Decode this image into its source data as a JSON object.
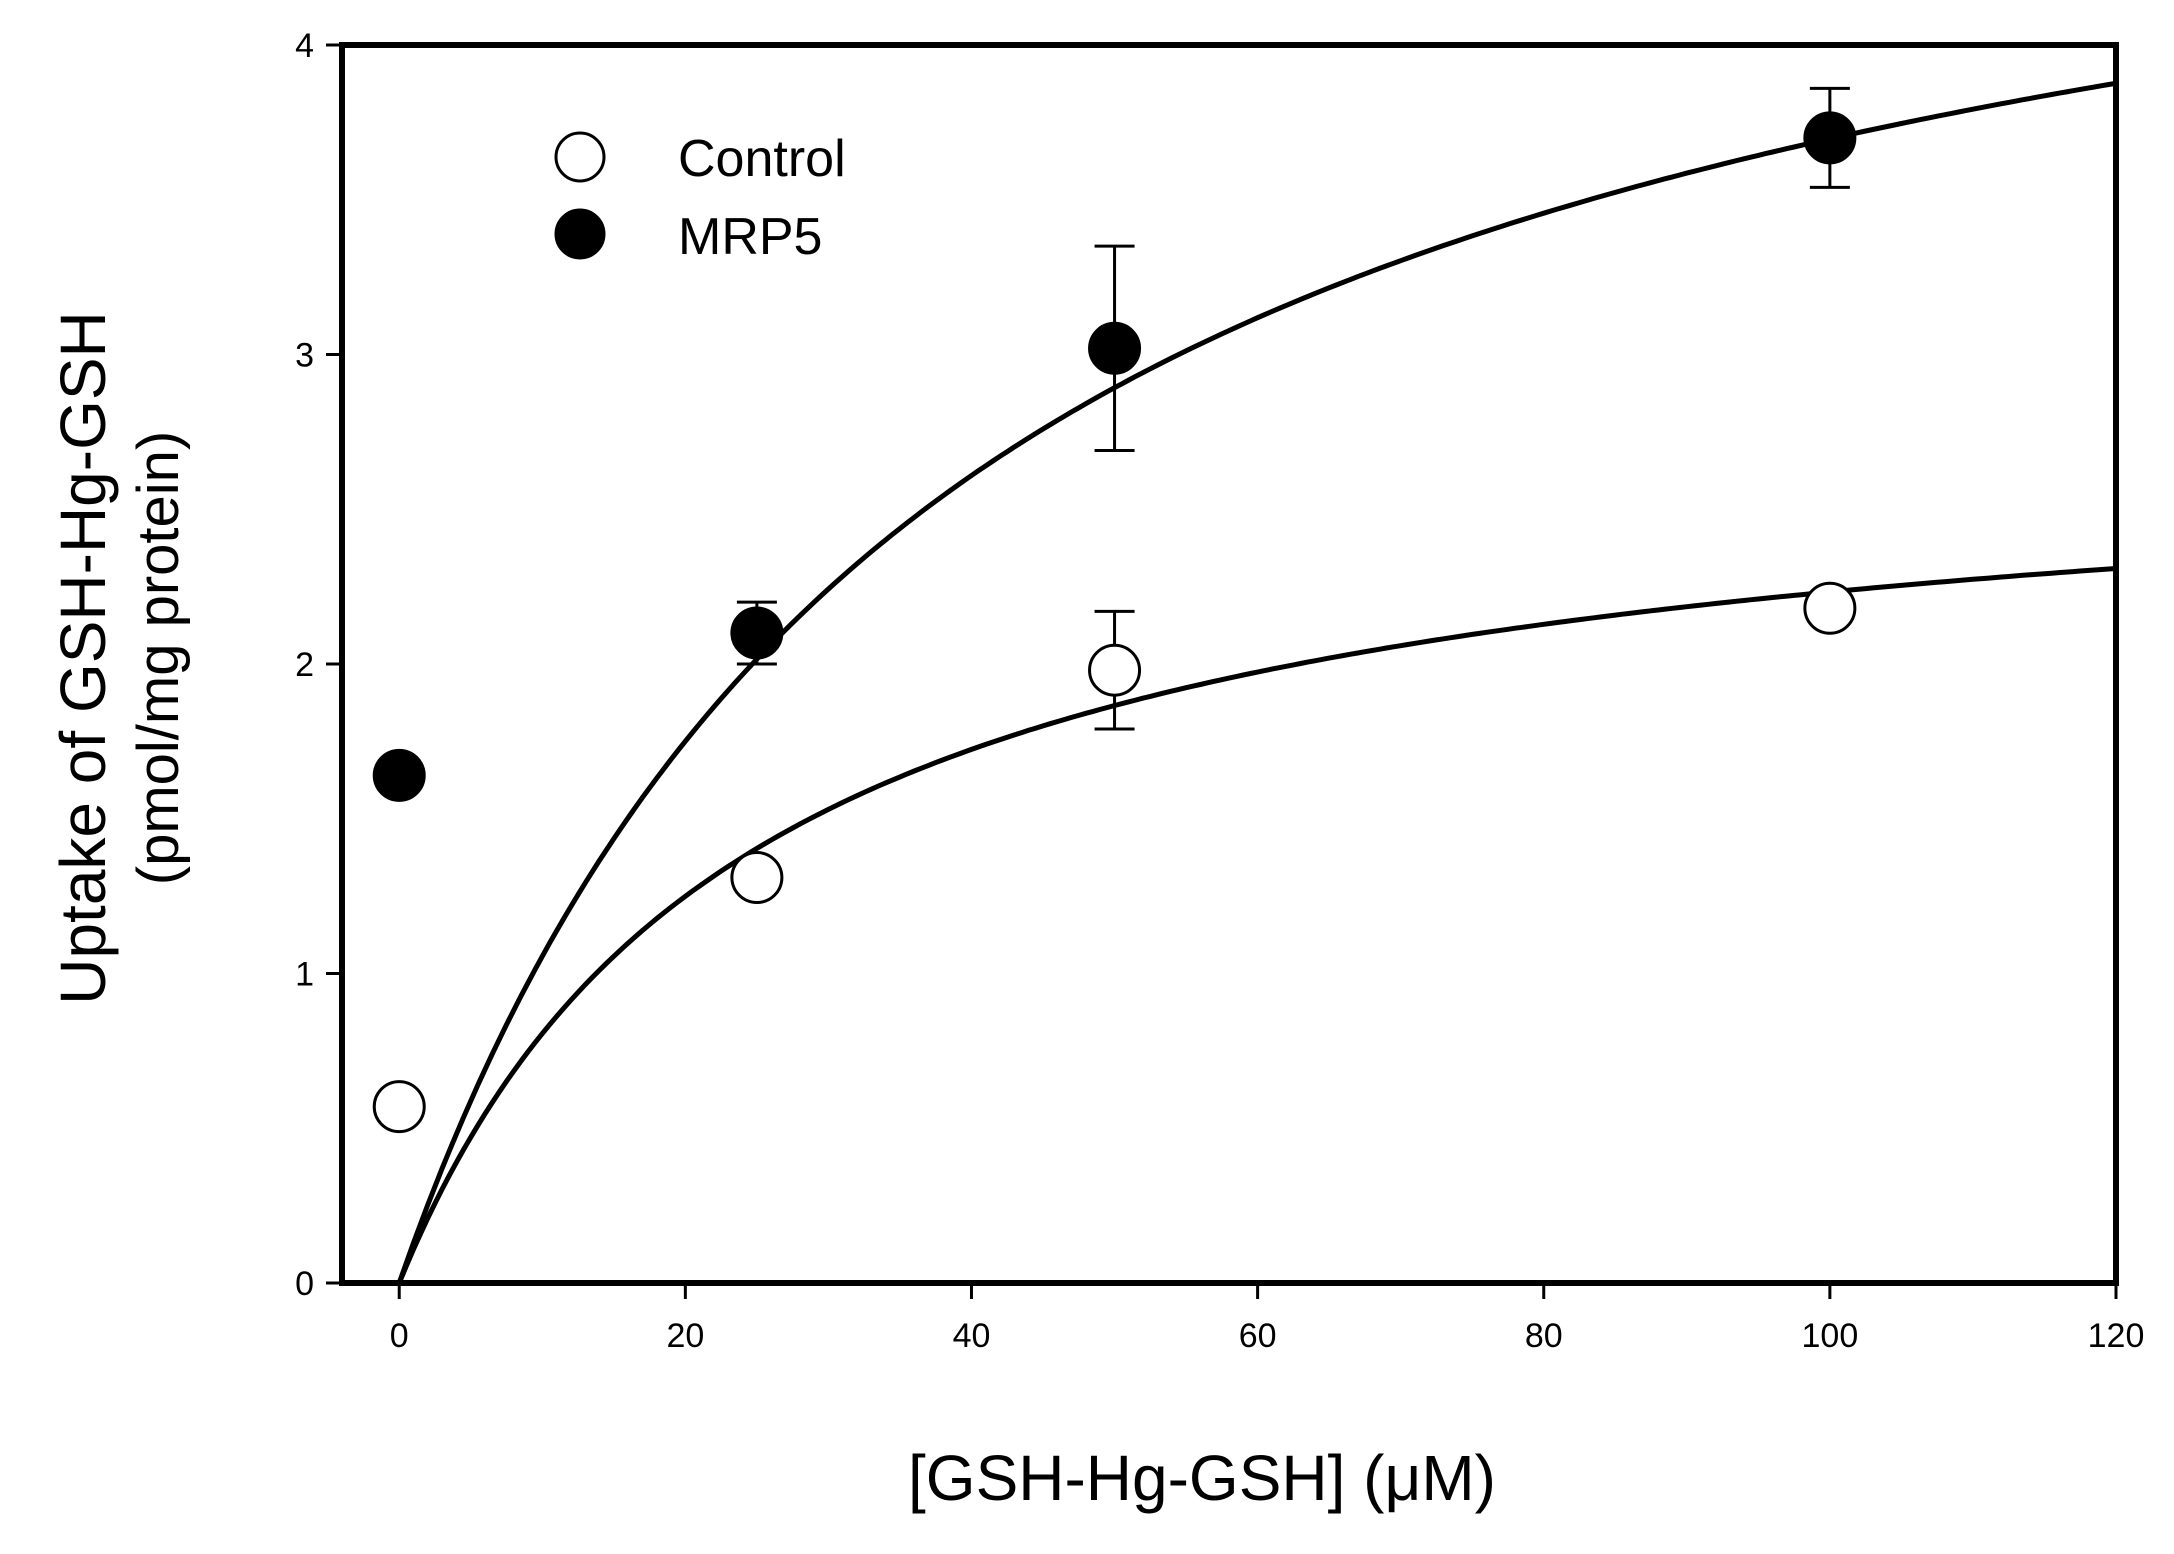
{
  "chart_data": {
    "type": "scatter",
    "title": "",
    "xlabel": "[GSH-Hg-GSH] (μM)",
    "ylabel_line1": "Uptake of GSH-Hg-GSH",
    "ylabel_line2": "(pmol/mg protein)",
    "xlim": [
      -4,
      120
    ],
    "ylim": [
      0,
      4
    ],
    "xticks": [
      0,
      20,
      40,
      60,
      80,
      100,
      120
    ],
    "yticks": [
      0,
      1,
      2,
      3,
      4
    ],
    "xtick_labels": [
      "0",
      "20",
      "40",
      "60",
      "80",
      "100",
      "120"
    ],
    "ytick_labels": [
      "0",
      "1",
      "2",
      "3",
      "4"
    ],
    "legend_position": "top-left",
    "series": [
      {
        "name": "Control",
        "marker": "open-circle",
        "color": "#000000",
        "x": [
          0,
          25,
          50,
          100
        ],
        "y": [
          0.57,
          1.31,
          1.98,
          2.18
        ],
        "yerr": [
          0,
          0.05,
          0.19,
          0
        ],
        "fit": {
          "model": "michaelis-menten",
          "vmax": 2.78,
          "km": 24.5,
          "x_range": [
            0,
            120
          ]
        }
      },
      {
        "name": "MRP5",
        "marker": "filled-circle",
        "color": "#000000",
        "x": [
          0,
          25,
          50,
          100
        ],
        "y": [
          1.64,
          2.1,
          3.02,
          3.7
        ],
        "yerr": [
          0,
          0.1,
          0.33,
          0.16
        ],
        "fit": {
          "model": "michaelis-menten",
          "vmax": 5.12,
          "km": 38.5,
          "x_range": [
            0,
            120
          ]
        }
      }
    ]
  }
}
